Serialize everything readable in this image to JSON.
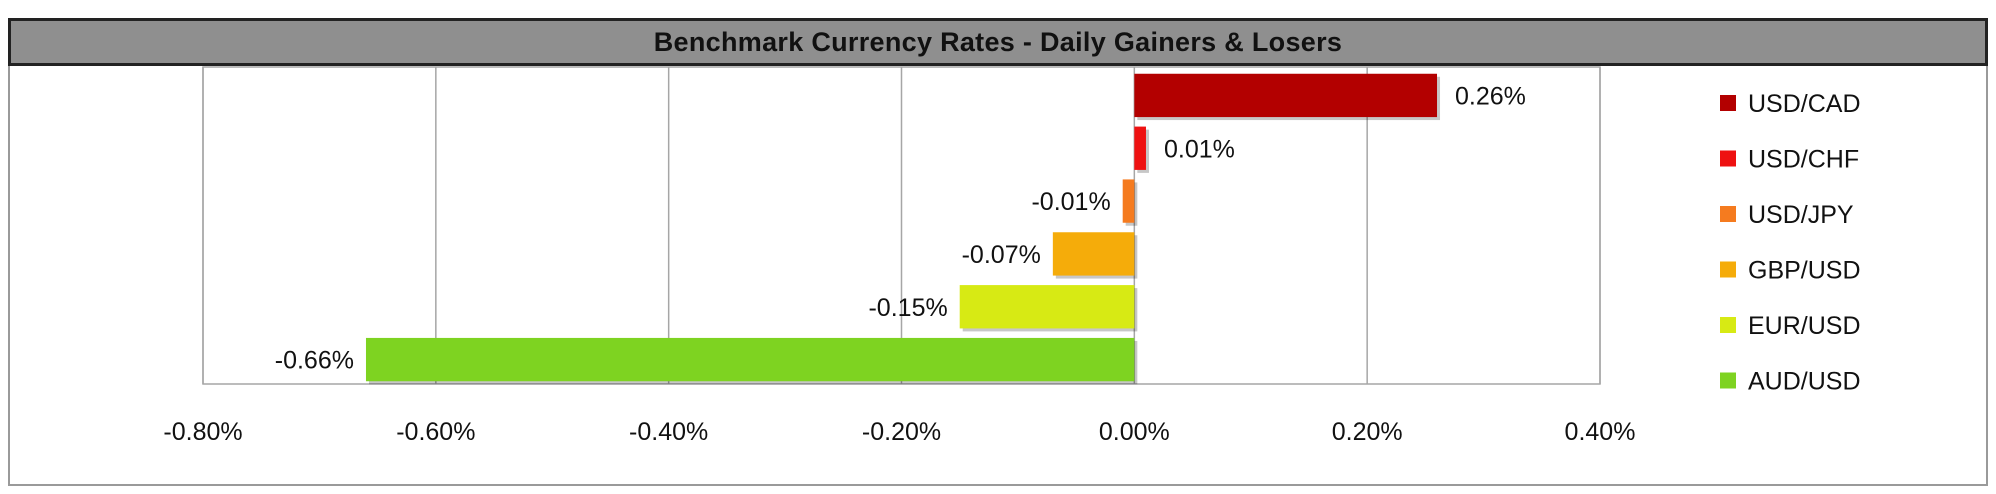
{
  "chart_data": {
    "type": "bar",
    "orientation": "horizontal",
    "title": "Benchmark Currency Rates - Daily Gainers & Losers",
    "categories": [
      "USD/CAD",
      "USD/CHF",
      "USD/JPY",
      "GBP/USD",
      "EUR/USD",
      "AUD/USD"
    ],
    "values": [
      0.26,
      0.01,
      -0.01,
      -0.07,
      -0.15,
      -0.66
    ],
    "value_labels": [
      "0.26%",
      "0.01%",
      "-0.01%",
      "-0.07%",
      "-0.15%",
      "-0.66%"
    ],
    "colors": [
      "#b30000",
      "#ee1111",
      "#f57b1f",
      "#f5ac0a",
      "#d7ea14",
      "#7ed321"
    ],
    "xlim": [
      -0.8,
      0.4
    ],
    "x_ticks": [
      -0.8,
      -0.6,
      -0.4,
      -0.2,
      0.0,
      0.2,
      0.4
    ],
    "x_tick_labels": [
      "-0.80%",
      "-0.60%",
      "-0.40%",
      "-0.20%",
      "0.00%",
      "0.20%",
      "0.40%"
    ],
    "grid": "vertical",
    "legend": {
      "position": "right",
      "entries": [
        "USD/CAD",
        "USD/CHF",
        "USD/JPY",
        "GBP/USD",
        "EUR/USD",
        "AUD/USD"
      ]
    }
  }
}
